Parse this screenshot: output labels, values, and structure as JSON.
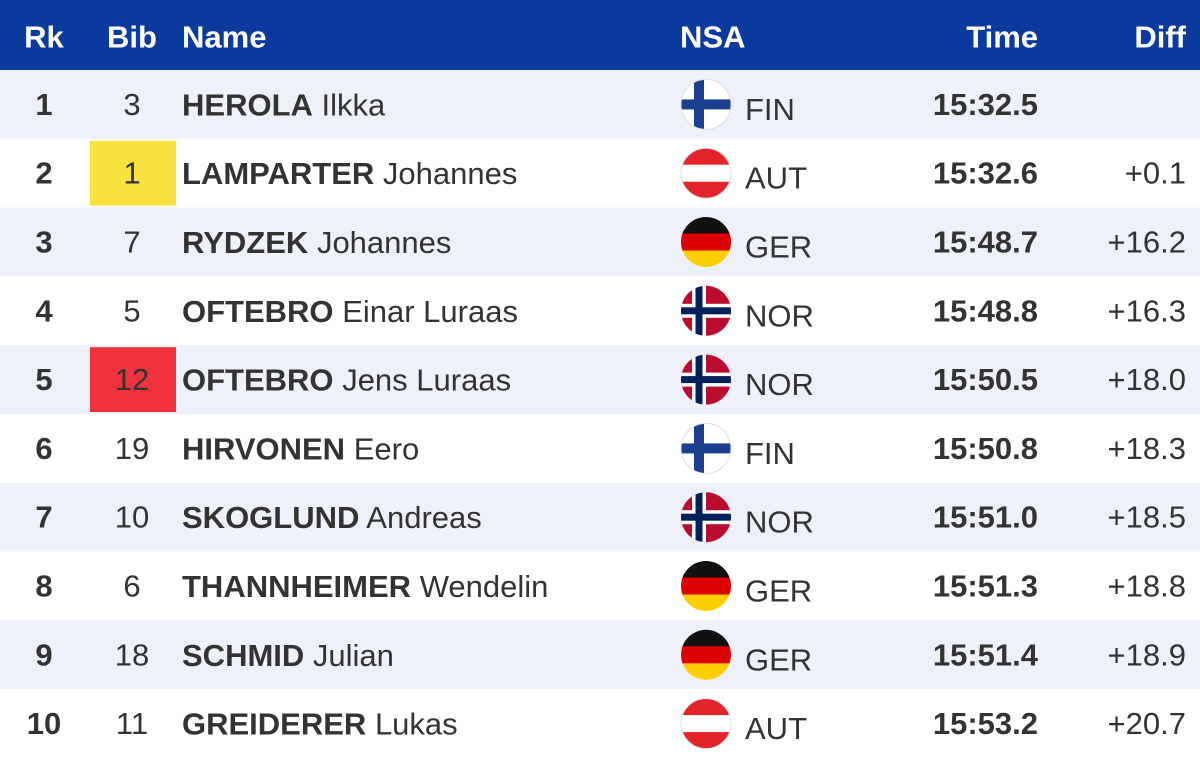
{
  "header": {
    "rank": "Rk",
    "bib": "Bib",
    "name": "Name",
    "nsa": "NSA",
    "time": "Time",
    "diff": "Diff"
  },
  "rows": [
    {
      "rank": 1,
      "bib": 3,
      "surname": "HEROLA",
      "first_name": "Ilkka",
      "nsa": "FIN",
      "time": "15:32.5"
    },
    {
      "rank": 2,
      "bib": 1,
      "bib_color": "#f7e23e",
      "surname": "LAMPARTER",
      "first_name": "Johannes",
      "nsa": "AUT",
      "time": "15:32.6",
      "diff": "+0.1"
    },
    {
      "rank": 3,
      "bib": 7,
      "surname": "RYDZEK",
      "first_name": "Johannes",
      "nsa": "GER",
      "time": "15:48.7",
      "diff": "+16.2"
    },
    {
      "rank": 4,
      "bib": 5,
      "surname": "OFTEBRO",
      "first_name": "Einar Luraas",
      "nsa": "NOR",
      "time": "15:48.8",
      "diff": "+16.3"
    },
    {
      "rank": 5,
      "bib": 12,
      "bib_color": "#f0323c",
      "surname": "OFTEBRO",
      "first_name": "Jens Luraas",
      "nsa": "NOR",
      "time": "15:50.5",
      "diff": "+18.0"
    },
    {
      "rank": 6,
      "bib": 19,
      "surname": "HIRVONEN",
      "first_name": "Eero",
      "nsa": "FIN",
      "time": "15:50.8",
      "diff": "+18.3"
    },
    {
      "rank": 7,
      "bib": 10,
      "surname": "SKOGLUND",
      "first_name": "Andreas",
      "nsa": "NOR",
      "time": "15:51.0",
      "diff": "+18.5"
    },
    {
      "rank": 8,
      "bib": 6,
      "surname": "THANNHEIMER",
      "first_name": "Wendelin",
      "nsa": "GER",
      "time": "15:51.3",
      "diff": "+18.8"
    },
    {
      "rank": 9,
      "bib": 18,
      "surname": "SCHMID",
      "first_name": "Julian",
      "nsa": "GER",
      "time": "15:51.4",
      "diff": "+18.9"
    },
    {
      "rank": 10,
      "bib": 11,
      "surname": "GREIDERER",
      "first_name": "Lukas",
      "nsa": "AUT",
      "time": "15:53.2",
      "diff": "+20.7"
    }
  ]
}
